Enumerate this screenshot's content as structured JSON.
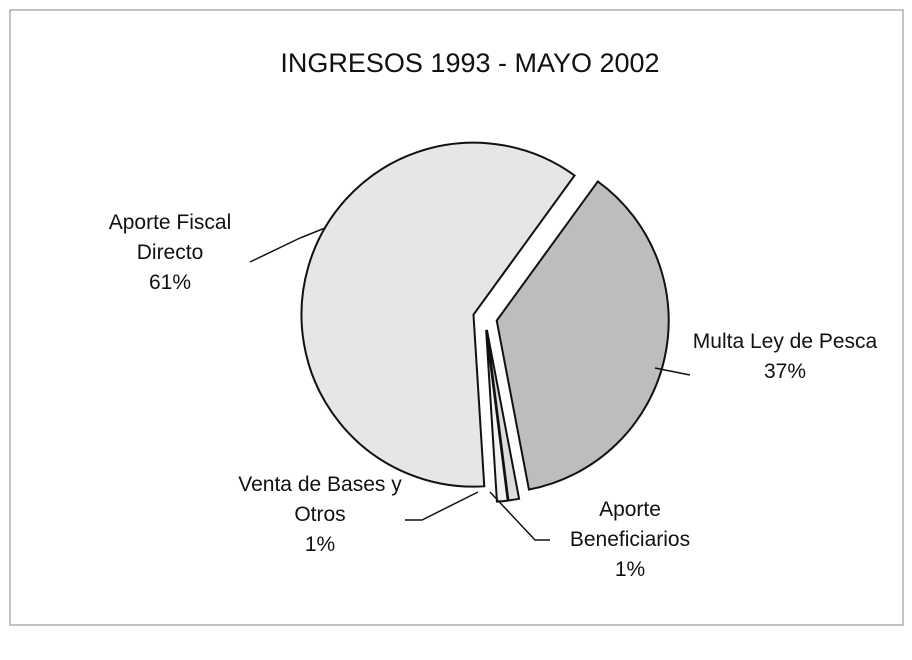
{
  "chart_data": {
    "type": "pie",
    "title": "INGRESOS 1993 - MAYO 2002",
    "categories": [
      "Multa Ley de Pesca",
      "Aporte Beneficiarios",
      "Venta de Bases y Otros",
      "Aporte Fiscal Directo"
    ],
    "values": [
      37,
      1,
      1,
      61
    ],
    "value_labels": [
      "37%",
      "1%",
      "1%",
      "61%"
    ],
    "colors": [
      "#bdbdbd",
      "#dcdcdc",
      "#f2f2f2",
      "#e6e6e6"
    ]
  }
}
